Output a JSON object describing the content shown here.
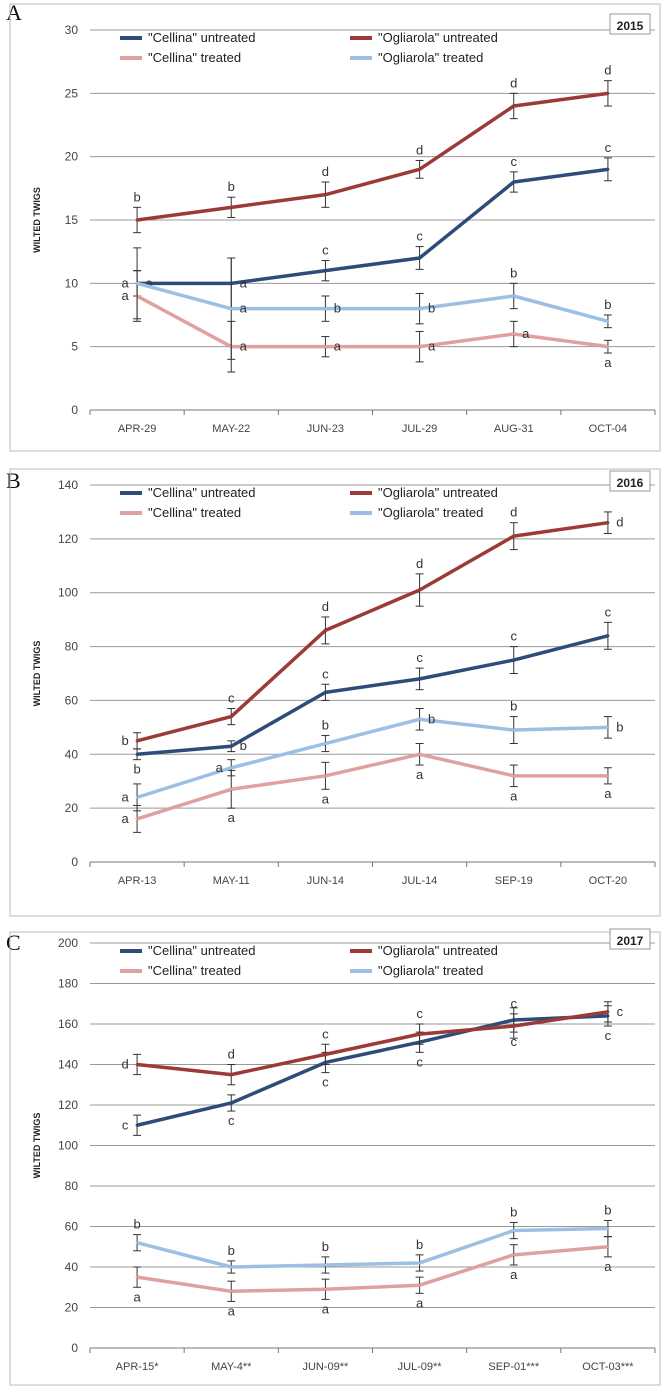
{
  "colors": {
    "cellina_untreated": "#2e4c7a",
    "ogliarola_untreated": "#9b3a36",
    "cellina_treated": "#e0a0a0",
    "ogliarola_treated": "#9cc0e4",
    "grid": "#999999"
  },
  "chart_data": [
    {
      "type": "line",
      "panel": "A",
      "year": "2015",
      "ylabel": "WILTED TWIGS",
      "ylim": [
        0,
        30
      ],
      "yticks": [
        0,
        5,
        10,
        15,
        20,
        25,
        30
      ],
      "categories": [
        "APR-29",
        "MAY-22",
        "JUN-23",
        "JUL-29",
        "AUG-31",
        "OCT-04"
      ],
      "legend": "top",
      "series": [
        {
          "name": "\"Cellina\" untreated",
          "color_key": "cellina_untreated",
          "values": [
            10,
            10,
            11,
            12,
            18,
            19
          ],
          "err": [
            1,
            2,
            0.8,
            0.9,
            0.8,
            0.9
          ],
          "labels": [
            "a",
            "a",
            "c",
            "c",
            "c",
            "c"
          ],
          "label_pos": [
            "right",
            "right",
            "above",
            "above",
            "above",
            "above"
          ]
        },
        {
          "name": "\"Ogliarola\" untreated",
          "color_key": "ogliarola_untreated",
          "values": [
            15,
            16,
            17,
            19,
            24,
            25
          ],
          "err": [
            1,
            0.8,
            1,
            0.7,
            1,
            1
          ],
          "labels": [
            "b",
            "b",
            "d",
            "d",
            "d",
            "d"
          ],
          "label_pos": [
            "above",
            "above",
            "above",
            "above",
            "above",
            "above"
          ]
        },
        {
          "name": "\"Cellina\" treated",
          "color_key": "cellina_treated",
          "values": [
            9,
            5,
            5,
            5,
            6,
            5
          ],
          "err": [
            2,
            2,
            0.8,
            1.2,
            1,
            0.5
          ],
          "labels": [
            "a",
            "a",
            "a",
            "a",
            "a",
            "a"
          ],
          "label_pos": [
            "left",
            "right",
            "right",
            "right",
            "right",
            "below"
          ]
        },
        {
          "name": "\"Ogliarola\" treated",
          "color_key": "ogliarola_treated",
          "values": [
            10,
            8,
            8,
            8,
            9,
            7
          ],
          "err": [
            2.8,
            4,
            1,
            1.2,
            1,
            0.5
          ],
          "labels": [
            "a",
            "a",
            "b",
            "b",
            "b",
            "b"
          ],
          "label_pos": [
            "left",
            "right",
            "right",
            "right",
            "above",
            "above"
          ]
        }
      ]
    },
    {
      "type": "line",
      "panel": "B",
      "year": "2016",
      "ylabel": "WILTED TWIGS",
      "ylim": [
        0,
        140
      ],
      "yticks": [
        0,
        20,
        40,
        60,
        80,
        100,
        120,
        140
      ],
      "categories": [
        "APR-13",
        "MAY-11",
        "JUN-14",
        "JUL-14",
        "SEP-19",
        "OCT-20"
      ],
      "legend": "top",
      "series": [
        {
          "name": "\"Cellina\" untreated",
          "color_key": "cellina_untreated",
          "values": [
            40,
            43,
            63,
            68,
            75,
            84
          ],
          "err": [
            2,
            2,
            3,
            4,
            5,
            5
          ],
          "labels": [
            "b",
            "b",
            "c",
            "c",
            "c",
            "c"
          ],
          "label_pos": [
            "below",
            "right",
            "above",
            "above",
            "above",
            "above"
          ]
        },
        {
          "name": "\"Ogliarola\" untreated",
          "color_key": "ogliarola_untreated",
          "values": [
            45,
            54,
            86,
            101,
            121,
            126
          ],
          "err": [
            3,
            3,
            5,
            6,
            5,
            4
          ],
          "labels": [
            "b",
            "c",
            "d",
            "d",
            "d",
            "d"
          ],
          "label_pos": [
            "left",
            "above",
            "above",
            "above",
            "above",
            "right"
          ]
        },
        {
          "name": "\"Cellina\" treated",
          "color_key": "cellina_treated",
          "values": [
            16,
            27,
            32,
            40,
            32,
            32
          ],
          "err": [
            5,
            7,
            5,
            4,
            4,
            3
          ],
          "labels": [
            "a",
            "a",
            "a",
            "a",
            "a",
            "a"
          ],
          "label_pos": [
            "left",
            "below",
            "below",
            "below",
            "below",
            "below"
          ]
        },
        {
          "name": "\"Ogliarola\" treated",
          "color_key": "ogliarola_treated",
          "values": [
            24,
            35,
            44,
            53,
            49,
            50
          ],
          "err": [
            5,
            3,
            3,
            4,
            5,
            4
          ],
          "labels": [
            "a",
            "a",
            "b",
            "b",
            "b",
            "b"
          ],
          "label_pos": [
            "left",
            "left",
            "above",
            "right",
            "above",
            "right"
          ]
        }
      ]
    },
    {
      "type": "line",
      "panel": "C",
      "year": "2017",
      "ylabel": "WILTED TWIGS",
      "ylim": [
        0,
        200
      ],
      "yticks": [
        0,
        20,
        40,
        60,
        80,
        100,
        120,
        140,
        160,
        180,
        200
      ],
      "categories": [
        "APR-15*",
        "MAY-4**",
        "JUN-09**",
        "JUL-09**",
        "SEP-01***",
        "OCT-03***"
      ],
      "legend": "top",
      "series": [
        {
          "name": "\"Cellina\" untreated",
          "color_key": "cellina_untreated",
          "values": [
            110,
            121,
            141,
            151,
            162,
            164
          ],
          "err": [
            5,
            4,
            5,
            5,
            6,
            5
          ],
          "labels": [
            "c",
            "c",
            "c",
            "c",
            "c",
            "c"
          ],
          "label_pos": [
            "left",
            "below",
            "below",
            "below",
            "below",
            "below"
          ]
        },
        {
          "name": "\"Ogliarola\" untreated",
          "color_key": "ogliarola_untreated",
          "values": [
            140,
            135,
            145,
            155,
            159,
            166
          ],
          "err": [
            5,
            5,
            5,
            5,
            6,
            5
          ],
          "labels": [
            "d",
            "d",
            "c",
            "c",
            "c",
            "c"
          ],
          "label_pos": [
            "left",
            "above",
            "above",
            "above",
            "above",
            "right"
          ]
        },
        {
          "name": "\"Cellina\" treated",
          "color_key": "cellina_treated",
          "values": [
            35,
            28,
            29,
            31,
            46,
            50
          ],
          "err": [
            5,
            5,
            5,
            4,
            5,
            5
          ],
          "labels": [
            "a",
            "a",
            "a",
            "a",
            "a",
            "a"
          ],
          "label_pos": [
            "below",
            "below",
            "below",
            "below",
            "below",
            "below"
          ]
        },
        {
          "name": "\"Ogliarola\" treated",
          "color_key": "ogliarola_treated",
          "values": [
            52,
            40,
            41,
            42,
            58,
            59
          ],
          "err": [
            4,
            3,
            4,
            4,
            4,
            4
          ],
          "labels": [
            "b",
            "b",
            "b",
            "b",
            "b",
            "b"
          ],
          "label_pos": [
            "above",
            "above",
            "above",
            "above",
            "above",
            "above"
          ]
        }
      ]
    }
  ]
}
